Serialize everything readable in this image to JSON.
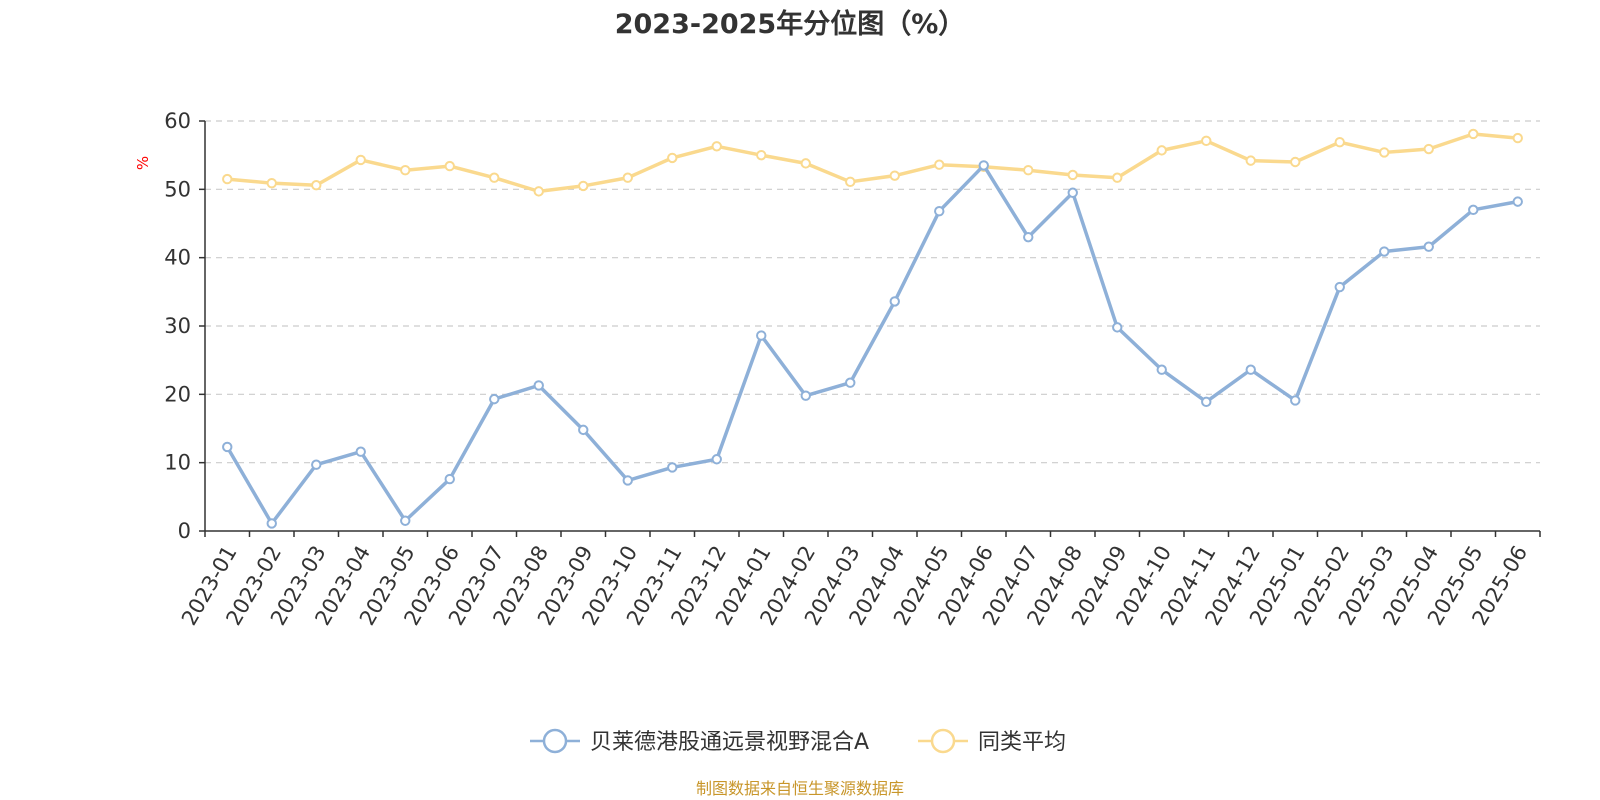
{
  "colors": {
    "fund": "#8eb0d8",
    "average": "#fad98e",
    "grid": "#cccccc",
    "axis": "#333333",
    "unit": "#ff0000",
    "source": "#c8962a"
  },
  "source_text": "制图数据来自恒生聚源数据库",
  "chart_data": {
    "type": "line",
    "title": "2023-2025年分位图（%）",
    "ylabel": "%",
    "xlabel": "",
    "ylim": [
      0,
      60
    ],
    "yticks": [
      0,
      10,
      20,
      30,
      40,
      50,
      60
    ],
    "grid": true,
    "legend": "bottom-center",
    "categories": [
      "2023-01",
      "2023-02",
      "2023-03",
      "2023-04",
      "2023-05",
      "2023-06",
      "2023-07",
      "2023-08",
      "2023-09",
      "2023-10",
      "2023-11",
      "2023-12",
      "2024-01",
      "2024-02",
      "2024-03",
      "2024-04",
      "2024-05",
      "2024-06",
      "2024-07",
      "2024-08",
      "2024-09",
      "2024-10",
      "2024-11",
      "2024-12",
      "2025-01",
      "2025-02",
      "2025-03",
      "2025-04",
      "2025-05",
      "2025-06"
    ],
    "series": [
      {
        "name": "贝莱德港股通远景视野混合A",
        "color": "#8eb0d8",
        "values": [
          12.3,
          1.1,
          9.7,
          11.6,
          1.5,
          7.6,
          19.3,
          21.3,
          14.8,
          7.4,
          9.3,
          10.5,
          28.6,
          19.8,
          21.7,
          33.6,
          46.8,
          53.5,
          43.0,
          49.5,
          29.8,
          23.6,
          18.9,
          23.6,
          19.1,
          35.7,
          40.9,
          41.6,
          47.0,
          48.2
        ]
      },
      {
        "name": "同类平均",
        "color": "#fad98e",
        "values": [
          51.5,
          50.9,
          50.6,
          54.3,
          52.8,
          53.4,
          51.7,
          49.7,
          50.5,
          51.7,
          54.6,
          56.3,
          55.0,
          53.8,
          51.1,
          52.0,
          53.6,
          53.3,
          52.8,
          52.1,
          51.7,
          55.7,
          57.1,
          54.2,
          54.0,
          56.9,
          55.4,
          55.9,
          58.1,
          57.5
        ]
      }
    ]
  }
}
